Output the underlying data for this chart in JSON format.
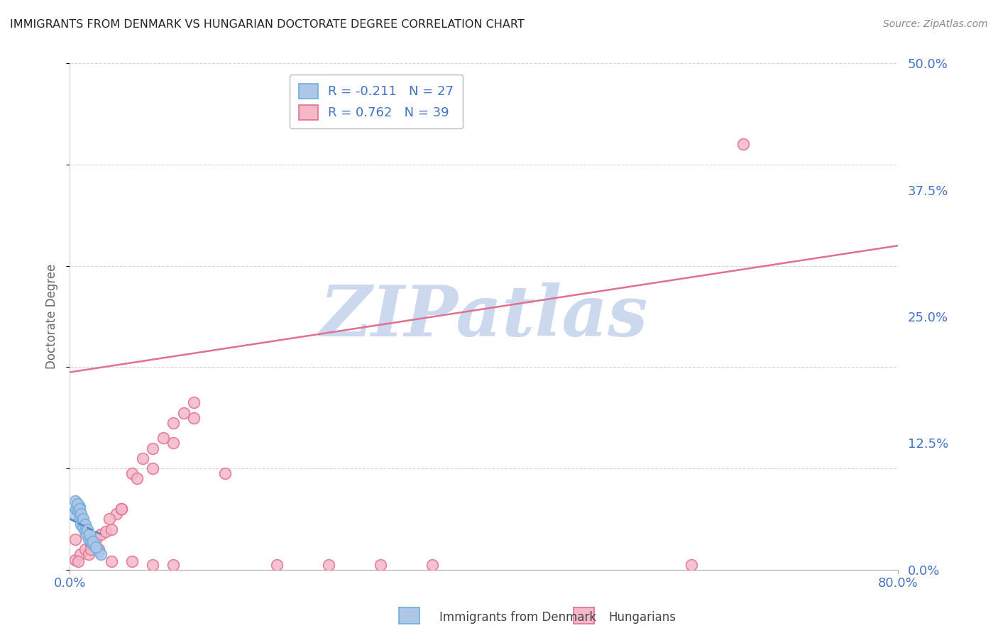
{
  "title": "IMMIGRANTS FROM DENMARK VS HUNGARIAN DOCTORATE DEGREE CORRELATION CHART",
  "source": "Source: ZipAtlas.com",
  "ylabel_label": "Doctorate Degree",
  "xlim": [
    0.0,
    0.8
  ],
  "ylim": [
    0.0,
    0.5
  ],
  "ytick_vals": [
    0.0,
    0.125,
    0.25,
    0.375,
    0.5
  ],
  "ytick_labels": [
    "0.0%",
    "12.5%",
    "25.0%",
    "37.5%",
    "50.0%"
  ],
  "xtick_vals": [
    0.0,
    0.8
  ],
  "xtick_labels": [
    "0.0%",
    "80.0%"
  ],
  "denmark_fill": "#aec6e8",
  "denmark_edge": "#6baed6",
  "hungarian_fill": "#f4b8c8",
  "hungarian_edge": "#e07090",
  "trendline_denmark_color": "#5588cc",
  "trendline_hungarian_color": "#e07090",
  "legend_text_color": "#4472c4",
  "axis_label_color": "#4472c4",
  "grid_color": "#cccccc",
  "background_color": "#ffffff",
  "title_color": "#222222",
  "source_color": "#888888",
  "watermark_text": "ZIPatlas",
  "watermark_color": "#ccd8ee",
  "legend_R1": "-0.211",
  "legend_N1": "27",
  "legend_R2": "0.762",
  "legend_N2": "39",
  "legend_label1": "Immigrants from Denmark",
  "legend_label2": "Hungarians",
  "denmark_scatter_x": [
    0.004,
    0.006,
    0.007,
    0.008,
    0.009,
    0.01,
    0.011,
    0.012,
    0.013,
    0.015,
    0.016,
    0.018,
    0.02,
    0.022,
    0.025,
    0.028,
    0.03,
    0.005,
    0.007,
    0.009,
    0.011,
    0.013,
    0.015,
    0.017,
    0.019,
    0.022,
    0.025
  ],
  "denmark_scatter_y": [
    0.055,
    0.06,
    0.065,
    0.058,
    0.062,
    0.05,
    0.045,
    0.048,
    0.042,
    0.038,
    0.035,
    0.03,
    0.028,
    0.025,
    0.022,
    0.018,
    0.015,
    0.068,
    0.065,
    0.06,
    0.055,
    0.05,
    0.045,
    0.04,
    0.035,
    0.028,
    0.022
  ],
  "hungarian_scatter_x": [
    0.005,
    0.01,
    0.015,
    0.02,
    0.025,
    0.03,
    0.035,
    0.04,
    0.045,
    0.05,
    0.06,
    0.07,
    0.08,
    0.09,
    0.1,
    0.11,
    0.12,
    0.008,
    0.018,
    0.028,
    0.038,
    0.05,
    0.065,
    0.08,
    0.1,
    0.12,
    0.15,
    0.2,
    0.25,
    0.3,
    0.35,
    0.005,
    0.02,
    0.04,
    0.06,
    0.08,
    0.1,
    0.6,
    0.65
  ],
  "hungarian_scatter_y": [
    0.01,
    0.015,
    0.02,
    0.025,
    0.03,
    0.035,
    0.038,
    0.04,
    0.055,
    0.06,
    0.095,
    0.11,
    0.12,
    0.13,
    0.145,
    0.155,
    0.165,
    0.008,
    0.015,
    0.02,
    0.05,
    0.06,
    0.09,
    0.1,
    0.125,
    0.15,
    0.095,
    0.005,
    0.005,
    0.005,
    0.005,
    0.03,
    0.02,
    0.008,
    0.008,
    0.005,
    0.005,
    0.005,
    0.42
  ],
  "danish_trend_x0": 0.0,
  "danish_trend_x1": 0.03,
  "danish_trend_y0": 0.05,
  "danish_trend_y1": 0.035,
  "hungarian_trend_x0": 0.0,
  "hungarian_trend_x1": 0.8,
  "hungarian_trend_y0": 0.195,
  "hungarian_trend_y1": 0.32,
  "marker_size": 130
}
